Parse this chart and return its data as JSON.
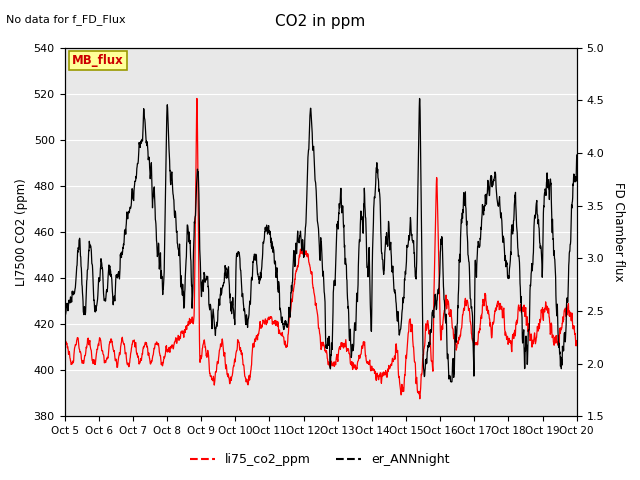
{
  "title": "CO2 in ppm",
  "top_left_text": "No data for f_FD_Flux",
  "ylabel_left": "LI7500 CO2 (ppm)",
  "ylabel_right": "FD Chamber flux",
  "xlim": [
    0,
    15
  ],
  "ylim_left": [
    380,
    540
  ],
  "ylim_right": [
    1.5,
    5.0
  ],
  "xtick_labels": [
    "Oct 5",
    "Oct 6",
    "Oct 7",
    "Oct 8",
    "Oct 9",
    "Oct 10",
    "Oct 11",
    "Oct 12",
    "Oct 13",
    "Oct 14",
    "Oct 15",
    "Oct 16",
    "Oct 17",
    "Oct 18",
    "Oct 19",
    "Oct 20"
  ],
  "ytick_left": [
    380,
    400,
    420,
    440,
    460,
    480,
    500,
    520,
    540
  ],
  "ytick_right": [
    1.5,
    2.0,
    2.5,
    3.0,
    3.5,
    4.0,
    4.5,
    5.0
  ],
  "legend_items": [
    "li75_co2_ppm",
    "er_ANNnight"
  ],
  "legend_colors": [
    "#ff0000",
    "#000000"
  ],
  "mb_flux_box_color": "#ffff99",
  "mb_flux_text_color": "#cc0000",
  "mb_flux_border_color": "#999900",
  "plot_bg_color": "#e8e8e8",
  "fig_bg_color": "#ffffff",
  "line_color_red": "#ff0000",
  "line_color_black": "#000000",
  "grid_color": "#ffffff"
}
